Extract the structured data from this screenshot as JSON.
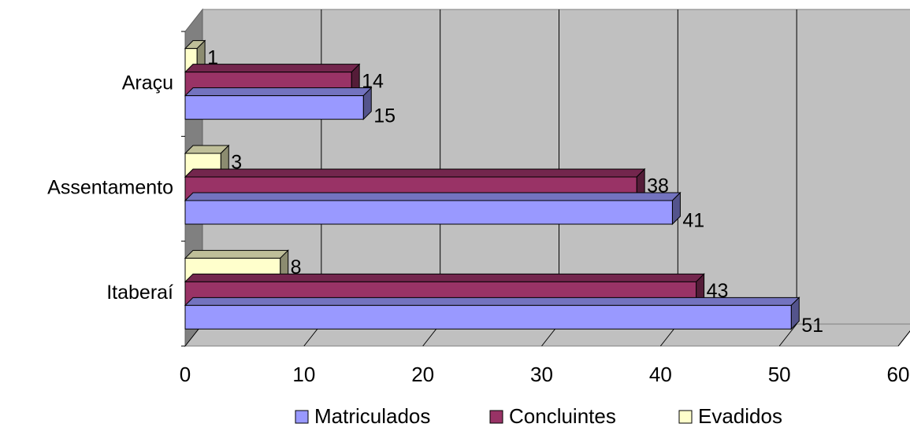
{
  "chart_data": {
    "type": "bar",
    "orientation": "horizontal",
    "style": "3d-clustered",
    "categories": [
      "Itaberaí",
      "Assentamento",
      "Araçu"
    ],
    "series": [
      {
        "name": "Matriculados",
        "values": [
          51,
          41,
          15
        ],
        "color": "#9999ff"
      },
      {
        "name": "Concluintes",
        "values": [
          43,
          38,
          14
        ],
        "color": "#993366"
      },
      {
        "name": "Evadidos",
        "values": [
          8,
          3,
          1
        ],
        "color": "#ffffcc"
      }
    ],
    "xlim": [
      0,
      60
    ],
    "xticks": [
      "0",
      "10",
      "20",
      "30",
      "40",
      "50",
      "60"
    ],
    "grid": true,
    "wall_color": "#c0c0c0",
    "legend_position": "bottom",
    "title": "",
    "xlabel": "",
    "ylabel": ""
  }
}
